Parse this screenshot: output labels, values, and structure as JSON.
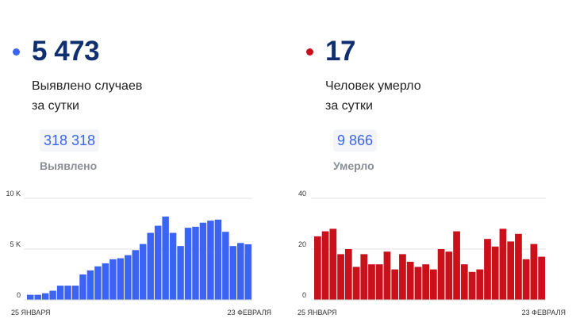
{
  "panels": [
    {
      "id": "cases",
      "color": "#3b64f4",
      "dot_color": "#3b64f4",
      "total_color": "#3b64f4",
      "value": "5 473",
      "desc_line1": "Выявлено случаев",
      "desc_line2": "за сутки",
      "total": "318 318",
      "total_label": "Выявлено"
    },
    {
      "id": "deaths",
      "color": "#c9101b",
      "dot_color": "#c9101b",
      "total_color": "#3b64f4",
      "value": "17",
      "desc_line1": "Человек умерло",
      "desc_line2": "за сутки",
      "total": "9 866",
      "total_label": "Умерло"
    }
  ],
  "chart_data": [
    {
      "type": "bar",
      "color": "#3b64f4",
      "ylim": [
        0,
        10000
      ],
      "yticks": [
        0,
        5000,
        10000
      ],
      "ytick_labels": [
        "0",
        "5 K",
        "10 K"
      ],
      "x_start_label": "25 ЯНВАРЯ",
      "x_end_label": "23 ФЕВРАЛЯ",
      "grid": true,
      "values": [
        500,
        500,
        650,
        900,
        1400,
        1400,
        1400,
        2500,
        2900,
        3300,
        3600,
        4000,
        4100,
        4400,
        4900,
        5500,
        6600,
        7300,
        8200,
        6600,
        5300,
        7100,
        7200,
        7600,
        7800,
        7900,
        6700,
        5300,
        5600,
        5473
      ]
    },
    {
      "type": "bar",
      "color": "#c9101b",
      "ylim": [
        0,
        40
      ],
      "yticks": [
        0,
        20,
        40
      ],
      "ytick_labels": [
        "0",
        "20",
        "40"
      ],
      "x_start_label": "25 ЯНВАРЯ",
      "x_end_label": "23 ФЕВРАЛЯ",
      "grid": true,
      "values": [
        25,
        27,
        28,
        18,
        20,
        13,
        18,
        14,
        14,
        19,
        12,
        18,
        15,
        13,
        14,
        12,
        20,
        19,
        27,
        14,
        11,
        12,
        24,
        21,
        28,
        23,
        26,
        16,
        22,
        17
      ]
    }
  ]
}
